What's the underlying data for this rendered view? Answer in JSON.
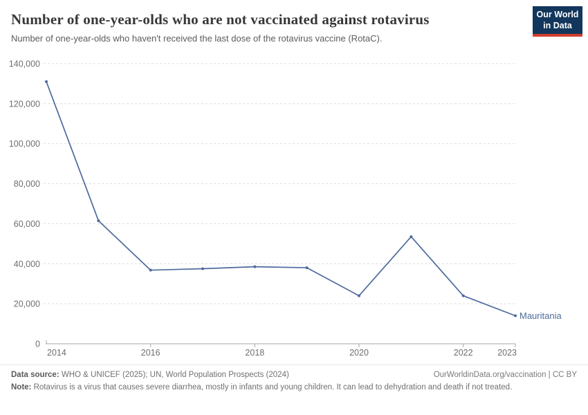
{
  "header": {
    "title": "Number of one-year-olds who are not vaccinated against rotavirus",
    "subtitle": "Number of one-year-olds who haven't received the last dose of the rotavirus vaccine (RotaC).",
    "logo_line1": "Our World",
    "logo_line2": "in Data"
  },
  "chart_data": {
    "type": "line",
    "title": "Number of one-year-olds who are not vaccinated against rotavirus",
    "xlabel": "",
    "ylabel": "",
    "xlim": [
      2014,
      2023
    ],
    "ylim": [
      0,
      140000
    ],
    "grid": "horizontal-dashed",
    "legend_position": "end-of-line-label",
    "x_ticks": [
      {
        "value": 2014,
        "label": "2014"
      },
      {
        "value": 2016,
        "label": "2016"
      },
      {
        "value": 2018,
        "label": "2018"
      },
      {
        "value": 2020,
        "label": "2020"
      },
      {
        "value": 2022,
        "label": "2022"
      },
      {
        "value": 2023,
        "label": "2023"
      }
    ],
    "y_ticks": [
      {
        "value": 0,
        "label": "0"
      },
      {
        "value": 20000,
        "label": "20,000"
      },
      {
        "value": 40000,
        "label": "40,000"
      },
      {
        "value": 60000,
        "label": "60,000"
      },
      {
        "value": 80000,
        "label": "80,000"
      },
      {
        "value": 100000,
        "label": "100,000"
      },
      {
        "value": 120000,
        "label": "120,000"
      },
      {
        "value": 140000,
        "label": "140,000"
      }
    ],
    "series": [
      {
        "name": "Mauritania",
        "color": "#4C6A9C",
        "x": [
          2014,
          2015,
          2016,
          2017,
          2018,
          2019,
          2020,
          2021,
          2022,
          2023
        ],
        "values": [
          131000,
          61500,
          36800,
          37500,
          38500,
          38000,
          24000,
          53500,
          24000,
          14000
        ]
      }
    ]
  },
  "footer": {
    "source_label": "Data source:",
    "source_text": " WHO & UNICEF (2025); UN, World Population Prospects (2024)",
    "link_text": "OurWorldinData.org/vaccination | CC BY",
    "note_label": "Note:",
    "note_text": " Rotavirus is a virus that causes severe diarrhea, mostly in infants and young children. It can lead to dehydration and death if not treated."
  },
  "colors": {
    "accent_line": "#4C6A9C",
    "grid": "#dcdcdc",
    "axis": "#a5a5a5",
    "tick_label": "#6e6e6e",
    "title": "#373737",
    "subtitle": "#5b5b5b",
    "footer_text": "#707070",
    "logo_bg": "#12365c",
    "logo_accent": "#d23d2e"
  }
}
